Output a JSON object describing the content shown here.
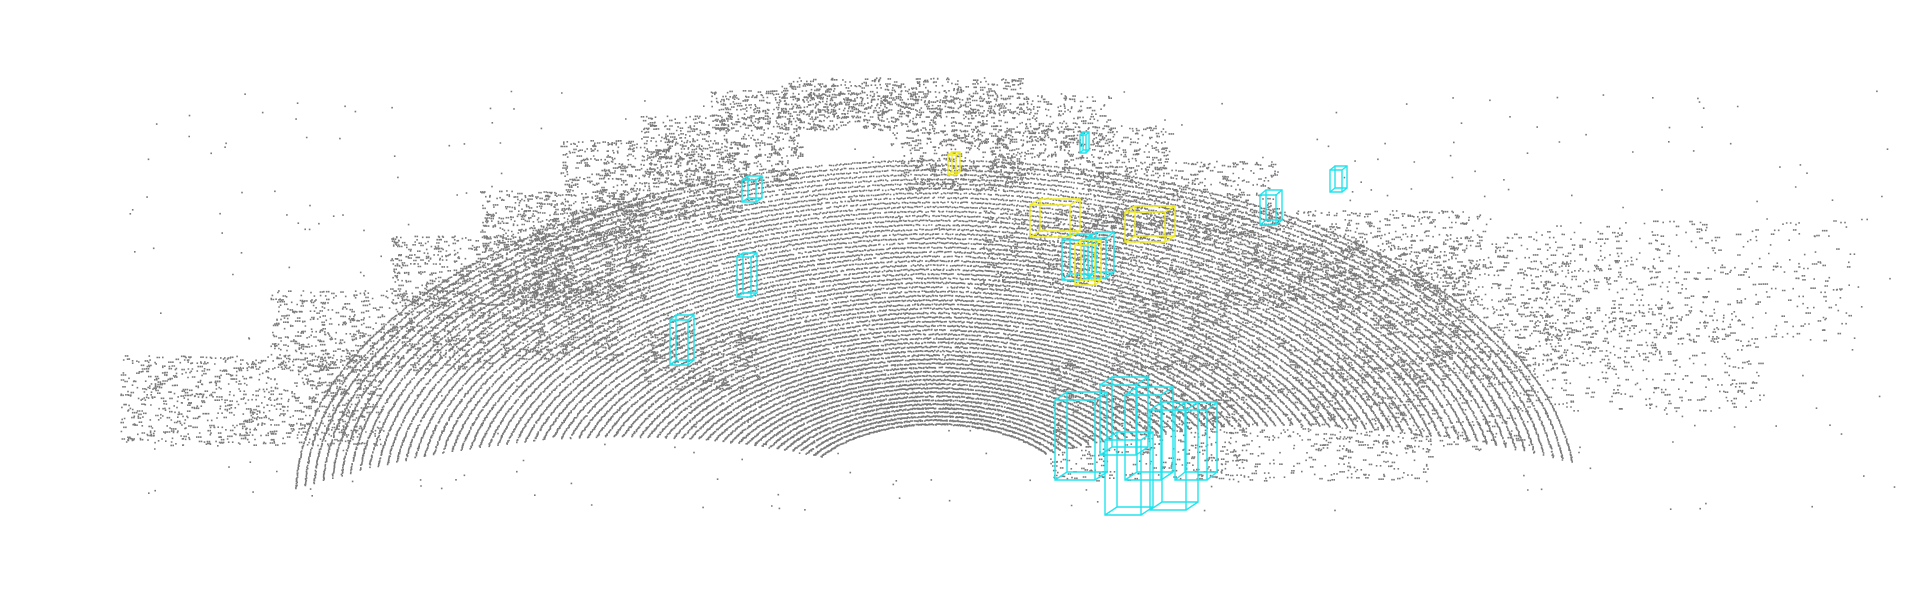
{
  "colors": {
    "background": "#ffffff",
    "points": "#7a7a7a",
    "box_pedestrian": "#22e4ee",
    "box_cyclist": "#f2ec1e"
  },
  "legend_icons": {
    "pedestrian": "cyan-3d-bounding-box-icon",
    "cyclist": "yellow-3d-bounding-box-icon"
  }
}
